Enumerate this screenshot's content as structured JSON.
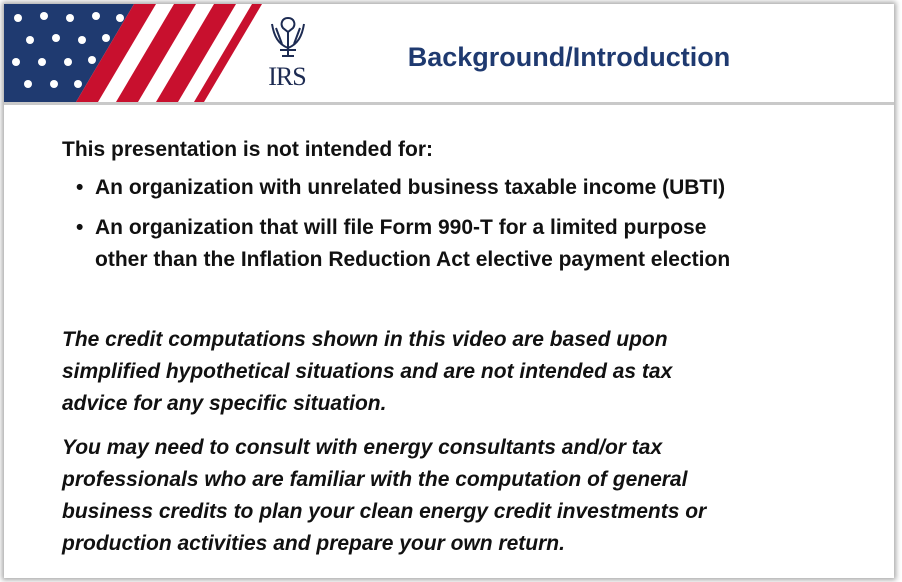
{
  "header": {
    "logo": "IRS",
    "title": "Background/Introduction"
  },
  "intro": "This presentation is not intended for:",
  "bullets": [
    [
      "An organization with unrelated business taxable income (UBTI)"
    ],
    [
      "An organization that will file Form 990-T for a limited purpose",
      "other than the Inflation Reduction Act elective payment election"
    ]
  ],
  "paragraphs": [
    [
      "The credit computations shown in this video are based upon",
      "simplified hypothetical situations and are not intended as tax",
      "advice for any specific situation."
    ],
    [
      "You may need to consult with energy consultants and/or tax",
      "professionals who are familiar with the computation of general",
      "business credits to plan your clean energy credit investments or",
      "production activities and prepare your own return."
    ]
  ]
}
